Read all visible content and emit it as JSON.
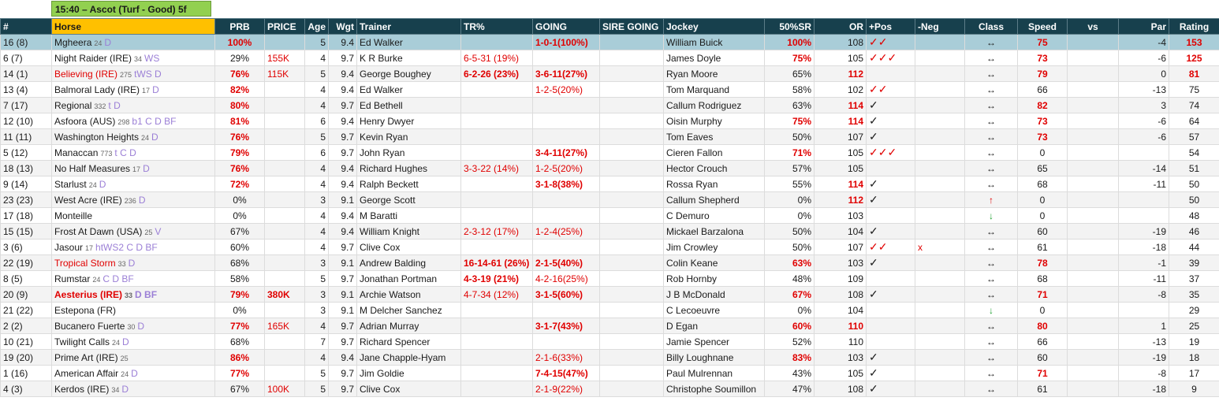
{
  "header": {
    "title": "15:40 – Ascot (Turf - Good) 5f"
  },
  "table": {
    "headers": [
      "#",
      "Horse",
      "PRB",
      "PRICE",
      "Age",
      "Wgt",
      "Trainer",
      "TR%",
      "GOING",
      "SIRE GOING",
      "Jockey",
      "50%SR",
      "OR",
      "+Pos",
      "-Neg",
      "Class",
      "Speed",
      "vs",
      "Par",
      "Rating"
    ],
    "rows": [
      {
        "no": "16 (8)",
        "horse": "Mgheera",
        "days": 24,
        "tags": "D",
        "prb": "100%",
        "age": 5,
        "wgt": 9.4,
        "trainer": "Ed Walker",
        "going": "1-0-1(100%)",
        "jockey": "William Buick",
        "sr": "100%",
        "or": 108,
        "pos": "✓✓",
        "class": "↔",
        "speed": 75,
        "par": -4,
        "rating": 153,
        "bold": [
          "prb",
          "going",
          "sr",
          "speed",
          "rating"
        ],
        "red": [
          "pos"
        ],
        "selected": true
      },
      {
        "no": "6 (7)",
        "horse": "Night Raider (IRE)",
        "days": 34,
        "tags": "WS",
        "prb": "29%",
        "price": "155K",
        "age": 4,
        "wgt": 9.7,
        "trainer": "K R Burke",
        "tr": "6-5-31 (19%)",
        "jockey": "James Doyle",
        "sr": "75%",
        "or": 105,
        "pos": "✓✓✓",
        "class": "↔",
        "speed": 73,
        "par": -6,
        "rating": 125,
        "red": [
          "price",
          "tr",
          "pos"
        ],
        "bold": [
          "sr",
          "speed",
          "rating"
        ]
      },
      {
        "no": "14 (1)",
        "horse": "Believing (IRE)",
        "days": 275,
        "tags": "tWS D",
        "prb": "76%",
        "price": "115K",
        "age": 5,
        "wgt": 9.4,
        "trainer": "George Boughey",
        "tr": "6-2-26 (23%)",
        "going": "3-6-11(27%)",
        "jockey": "Ryan Moore",
        "sr": "65%",
        "or": 112,
        "class": "↔",
        "speed": 79,
        "par": 0,
        "rating": 81,
        "red": [
          "horse",
          "price"
        ],
        "bold": [
          "prb",
          "tr",
          "going",
          "or",
          "speed",
          "rating"
        ]
      },
      {
        "no": "13 (4)",
        "horse": "Balmoral Lady (IRE)",
        "days": 17,
        "tags": "D",
        "prb": "82%",
        "age": 4,
        "wgt": 9.4,
        "trainer": "Ed Walker",
        "going": "1-2-5(20%)",
        "jockey": "Tom Marquand",
        "sr": "58%",
        "or": 102,
        "pos": "✓✓",
        "class": "↔",
        "speed": 66,
        "par": -13,
        "rating": 75,
        "bold": [
          "prb"
        ],
        "red": [
          "going",
          "pos"
        ]
      },
      {
        "no": "7 (17)",
        "horse": "Regional",
        "days": 332,
        "tags": "t D",
        "prb": "80%",
        "age": 4,
        "wgt": 9.7,
        "trainer": "Ed Bethell",
        "jockey": "Callum Rodriguez",
        "sr": "63%",
        "or": 114,
        "pos": "✓",
        "class": "↔",
        "speed": 82,
        "par": 3,
        "rating": 74,
        "bold": [
          "prb",
          "or",
          "speed"
        ]
      },
      {
        "no": "12 (10)",
        "horse": "Asfoora (AUS)",
        "days": 298,
        "tags": "b1 C D BF",
        "prb": "81%",
        "age": 6,
        "wgt": 9.4,
        "trainer": "Henry Dwyer",
        "jockey": "Oisin Murphy",
        "sr": "75%",
        "or": 114,
        "pos": "✓",
        "class": "↔",
        "speed": 73,
        "par": -6,
        "rating": 64,
        "bold": [
          "prb",
          "sr",
          "or",
          "speed"
        ]
      },
      {
        "no": "11 (11)",
        "horse": "Washington Heights",
        "days": 24,
        "tags": "D",
        "prb": "76%",
        "age": 5,
        "wgt": 9.7,
        "trainer": "Kevin Ryan",
        "jockey": "Tom Eaves",
        "sr": "50%",
        "or": 107,
        "pos": "✓",
        "class": "↔",
        "speed": 73,
        "par": -6,
        "rating": 57,
        "bold": [
          "prb",
          "speed"
        ]
      },
      {
        "no": "5 (12)",
        "horse": "Manaccan",
        "days": 773,
        "tags": "t C D",
        "prb": "79%",
        "age": 6,
        "wgt": 9.7,
        "trainer": "John Ryan",
        "going": "3-4-11(27%)",
        "jockey": "Cieren Fallon",
        "sr": "71%",
        "or": 105,
        "pos": "✓✓✓",
        "class": "↔",
        "speed": 0,
        "rating": 54,
        "bold": [
          "prb",
          "going",
          "sr"
        ],
        "red": [
          "pos"
        ]
      },
      {
        "no": "18 (13)",
        "horse": "No Half Measures",
        "days": 17,
        "tags": "D",
        "prb": "76%",
        "age": 4,
        "wgt": 9.4,
        "trainer": "Richard Hughes",
        "tr": "3-3-22 (14%)",
        "going": "1-2-5(20%)",
        "jockey": "Hector Crouch",
        "sr": "57%",
        "or": 105,
        "class": "↔",
        "speed": 65,
        "par": -14,
        "rating": 51,
        "bold": [
          "prb"
        ],
        "red": [
          "tr",
          "going"
        ]
      },
      {
        "no": "9 (14)",
        "horse": "Starlust",
        "days": 24,
        "tags": "D",
        "prb": "72%",
        "age": 4,
        "wgt": 9.4,
        "trainer": "Ralph Beckett",
        "going": "3-1-8(38%)",
        "jockey": "Rossa Ryan",
        "sr": "55%",
        "or": 114,
        "pos": "✓",
        "class": "↔",
        "speed": 68,
        "par": -11,
        "rating": 50,
        "bold": [
          "prb",
          "going",
          "or"
        ]
      },
      {
        "no": "23 (23)",
        "horse": "West Acre (IRE)",
        "days": 236,
        "tags": "D",
        "prb": "0%",
        "age": 3,
        "wgt": 9.1,
        "trainer": "George Scott",
        "jockey": "Callum Shepherd",
        "sr": "0%",
        "or": 112,
        "pos": "✓",
        "class": "↑",
        "speed": 0,
        "rating": 50,
        "bold": [
          "or"
        ],
        "red": [
          "class"
        ]
      },
      {
        "no": "17 (18)",
        "horse": "Monteille",
        "prb": "0%",
        "age": 4,
        "wgt": 9.4,
        "trainer": "M Baratti",
        "jockey": "C Demuro",
        "sr": "0%",
        "or": 103,
        "class": "↓",
        "speed": 0,
        "rating": 48,
        "green": [
          "class"
        ]
      },
      {
        "no": "15 (15)",
        "horse": "Frost At Dawn (USA)",
        "days": 25,
        "tags": "V",
        "prb": "67%",
        "age": 4,
        "wgt": 9.4,
        "trainer": "William Knight",
        "tr": "2-3-12 (17%)",
        "going": "1-2-4(25%)",
        "jockey": "Mickael Barzalona",
        "sr": "50%",
        "or": 104,
        "pos": "✓",
        "class": "↔",
        "speed": 60,
        "par": -19,
        "rating": 46,
        "red": [
          "tr",
          "going"
        ]
      },
      {
        "no": "3 (6)",
        "horse": "Jasour",
        "days": 17,
        "tags": "htWS2 C D BF",
        "prb": "60%",
        "age": 4,
        "wgt": 9.7,
        "trainer": "Clive Cox",
        "jockey": "Jim Crowley",
        "sr": "50%",
        "or": 107,
        "pos": "✓✓",
        "neg": "x",
        "class": "↔",
        "speed": 61,
        "par": -18,
        "rating": 44,
        "red": [
          "pos",
          "neg"
        ]
      },
      {
        "no": "22 (19)",
        "horse": "Tropical Storm",
        "days": 33,
        "tags": "D",
        "prb": "68%",
        "age": 3,
        "wgt": 9.1,
        "trainer": "Andrew Balding",
        "tr": "16-14-61 (26%)",
        "going": "2-1-5(40%)",
        "jockey": "Colin Keane",
        "sr": "63%",
        "or": 103,
        "pos": "✓",
        "class": "↔",
        "speed": 78,
        "par": -1,
        "rating": 39,
        "red": [
          "horse"
        ],
        "bold": [
          "tr",
          "going",
          "sr",
          "speed"
        ]
      },
      {
        "no": "8 (5)",
        "horse": "Rumstar",
        "days": 24,
        "tags": "C D BF",
        "prb": "58%",
        "age": 5,
        "wgt": 9.7,
        "trainer": "Jonathan Portman",
        "tr": "4-3-19 (21%)",
        "going": "4-2-16(25%)",
        "jockey": "Rob Hornby",
        "sr": "48%",
        "or": 109,
        "class": "↔",
        "speed": 68,
        "par": -11,
        "rating": 37,
        "bold": [
          "tr"
        ],
        "red": [
          "going"
        ]
      },
      {
        "no": "20 (9)",
        "horse": "Aesterius (IRE)",
        "days": 33,
        "tags": "D BF",
        "prb": "79%",
        "price": "380K",
        "age": 3,
        "wgt": 9.1,
        "trainer": "Archie Watson",
        "tr": "4-7-34 (12%)",
        "going": "3-1-5(60%)",
        "jockey": "J B McDonald",
        "sr": "67%",
        "or": 108,
        "pos": "✓",
        "class": "↔",
        "speed": 71,
        "par": -8,
        "rating": 35,
        "bold": [
          "horse",
          "prb",
          "price",
          "going",
          "sr",
          "speed"
        ],
        "red": [
          "tr"
        ]
      },
      {
        "no": "21 (22)",
        "horse": "Estepona (FR)",
        "prb": "0%",
        "age": 3,
        "wgt": 9.1,
        "trainer": "M Delcher Sanchez",
        "jockey": "C Lecoeuvre",
        "sr": "0%",
        "or": 104,
        "class": "↓",
        "speed": 0,
        "rating": 29,
        "green": [
          "class"
        ]
      },
      {
        "no": "2 (2)",
        "horse": "Bucanero Fuerte",
        "days": 30,
        "tags": "D",
        "prb": "77%",
        "price": "165K",
        "age": 4,
        "wgt": 9.7,
        "trainer": "Adrian Murray",
        "going": "3-1-7(43%)",
        "jockey": "D Egan",
        "sr": "60%",
        "or": 110,
        "class": "↔",
        "speed": 80,
        "par": 1,
        "rating": 25,
        "bold": [
          "prb",
          "going",
          "sr",
          "or",
          "speed"
        ],
        "red": [
          "price"
        ]
      },
      {
        "no": "10 (21)",
        "horse": "Twilight Calls",
        "days": 24,
        "tags": "D",
        "prb": "68%",
        "age": 7,
        "wgt": 9.7,
        "trainer": "Richard Spencer",
        "jockey": "Jamie Spencer",
        "sr": "52%",
        "or": 110,
        "class": "↔",
        "speed": 66,
        "par": -13,
        "rating": 19
      },
      {
        "no": "19 (20)",
        "horse": "Prime Art (IRE)",
        "days": 25,
        "prb": "86%",
        "age": 4,
        "wgt": 9.4,
        "trainer": "Jane Chapple-Hyam",
        "going": "2-1-6(33%)",
        "jockey": "Billy Loughnane",
        "sr": "83%",
        "or": 103,
        "pos": "✓",
        "class": "↔",
        "speed": 60,
        "par": -19,
        "rating": 18,
        "bold": [
          "prb",
          "sr"
        ],
        "red": [
          "going"
        ]
      },
      {
        "no": "1 (16)",
        "horse": "American Affair",
        "days": 24,
        "tags": "D",
        "prb": "77%",
        "age": 5,
        "wgt": 9.7,
        "trainer": "Jim Goldie",
        "going": "7-4-15(47%)",
        "jockey": "Paul Mulrennan",
        "sr": "43%",
        "or": 105,
        "pos": "✓",
        "class": "↔",
        "speed": 71,
        "par": -8,
        "rating": 17,
        "bold": [
          "prb",
          "going",
          "speed"
        ]
      },
      {
        "no": "4 (3)",
        "horse": "Kerdos (IRE)",
        "days": 34,
        "tags": "D",
        "prb": "67%",
        "price": "100K",
        "age": 5,
        "wgt": 9.7,
        "trainer": "Clive Cox",
        "going": "2-1-9(22%)",
        "jockey": "Christophe Soumillon",
        "sr": "47%",
        "or": 108,
        "pos": "✓",
        "class": "↔",
        "speed": 61,
        "par": -18,
        "rating": 9,
        "red": [
          "price",
          "going"
        ]
      }
    ]
  }
}
